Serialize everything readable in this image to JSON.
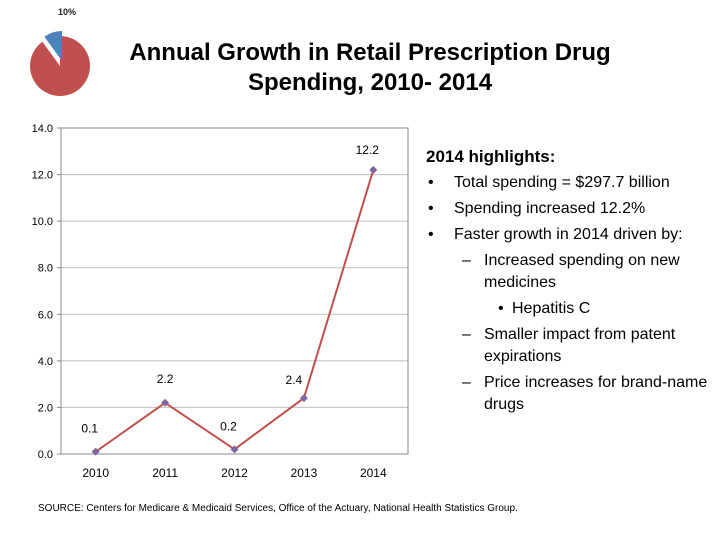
{
  "badge": {
    "percent_label": "10%",
    "percent": 10,
    "colors": {
      "slice": "#4f81bd",
      "rest": "#c0504d"
    }
  },
  "title_lines": [
    "Annual Growth in Retail Prescription Drug",
    "Spending, 2010- 2014"
  ],
  "chart_data": {
    "type": "line",
    "categories": [
      "2010",
      "2011",
      "2012",
      "2013",
      "2014"
    ],
    "values": [
      0.1,
      2.2,
      0.2,
      2.4,
      12.2
    ],
    "data_labels": [
      "0.1",
      "2.2",
      "0.2",
      "2.4",
      "12.2"
    ],
    "y_ticks": [
      "0.0",
      "2.0",
      "4.0",
      "6.0",
      "8.0",
      "10.0",
      "12.0",
      "14.0"
    ],
    "ylim": [
      0,
      14
    ],
    "grid": true,
    "colors": {
      "line": "#c0504d",
      "marker": "#8064a2",
      "grid": "#bfbfbf",
      "axis": "#888888"
    }
  },
  "highlights": {
    "title": "2014 highlights:",
    "items": [
      {
        "level": 1,
        "text": "Total spending = $297.7 billion"
      },
      {
        "level": 1,
        "text": "Spending increased 12.2%"
      },
      {
        "level": 1,
        "text": "Faster growth in 2014 driven by:"
      },
      {
        "level": 2,
        "text": "Increased spending on new medicines"
      },
      {
        "level": 3,
        "text": "Hepatitis C"
      },
      {
        "level": 2,
        "text": "Smaller impact from patent expirations"
      },
      {
        "level": 2,
        "text": "Price increases for brand-name drugs"
      }
    ]
  },
  "source": "SOURCE: Centers for Medicare & Medicaid Services, Office of the Actuary, National Health Statistics Group."
}
